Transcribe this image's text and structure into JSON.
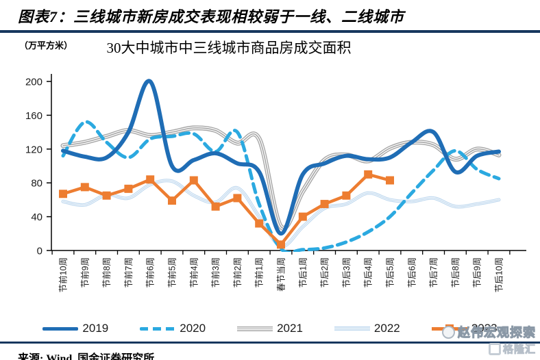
{
  "header": {
    "title": "图表7：三线城市新房成交表现相较弱于一线、二线城市"
  },
  "chart": {
    "unit_label": "（万平方米）",
    "title": "30大中城市中三线城市商品房成交面积"
  },
  "footer": {
    "source": "来源: Wind, 国金证券研究所"
  },
  "watermark": {
    "line1": "赵伟宏观探索",
    "line2": "格隆汇"
  },
  "colors": {
    "accent_navy": "#17375E",
    "s2019": "#1F6DB5",
    "s2020": "#2BA9E0",
    "s2021": "#A6A6A6",
    "s2022": "#BDD7EE",
    "s2023": "#ED7D31"
  },
  "chart_data": {
    "type": "line",
    "title": "30大中城市中三线城市商品房成交面积",
    "ylabel": "万平方米",
    "ylim": [
      0,
      200
    ],
    "yticks": [
      0,
      40,
      80,
      120,
      160,
      200
    ],
    "grid": false,
    "legend_position": "bottom",
    "categories": [
      "节前10周",
      "节前9周",
      "节前8周",
      "节前7周",
      "节前6周",
      "节前5周",
      "节前4周",
      "节前3周",
      "节前2周",
      "节前1周",
      "春节当周",
      "节后1周",
      "节后2周",
      "节后3周",
      "节后4周",
      "节后5周",
      "节后6周",
      "节后7周",
      "节后8周",
      "节后9周",
      "节后10周"
    ],
    "series": [
      {
        "name": "2019",
        "color": "#1F6DB5",
        "style": "solid",
        "smooth": true,
        "values": [
          118,
          111,
          110,
          140,
          200,
          100,
          107,
          115,
          103,
          93,
          20,
          90,
          103,
          112,
          108,
          110,
          128,
          140,
          93,
          112,
          117
        ]
      },
      {
        "name": "2020",
        "color": "#2BA9E0",
        "style": "dashed",
        "smooth": true,
        "values": [
          112,
          152,
          128,
          110,
          132,
          135,
          138,
          117,
          140,
          55,
          2,
          1,
          3,
          10,
          22,
          40,
          68,
          95,
          118,
          96,
          85
        ]
      },
      {
        "name": "2021",
        "color": "#A6A6A6",
        "style": "triple",
        "smooth": true,
        "values": [
          124,
          128,
          135,
          142,
          136,
          140,
          145,
          142,
          127,
          132,
          28,
          70,
          107,
          113,
          106,
          121,
          128,
          125,
          108,
          120,
          113
        ]
      },
      {
        "name": "2022",
        "color": "#BDD7EE",
        "style": "triple-thin",
        "smooth": true,
        "values": [
          58,
          54,
          66,
          62,
          78,
          82,
          65,
          57,
          74,
          40,
          5,
          28,
          50,
          55,
          68,
          60,
          58,
          62,
          52,
          55,
          60
        ]
      },
      {
        "name": "2023",
        "color": "#ED7D31",
        "style": "solid-square",
        "smooth": false,
        "values": [
          67,
          75,
          65,
          73,
          84,
          59,
          83,
          52,
          62,
          32,
          7,
          40,
          55,
          65,
          90,
          83
        ]
      }
    ]
  }
}
